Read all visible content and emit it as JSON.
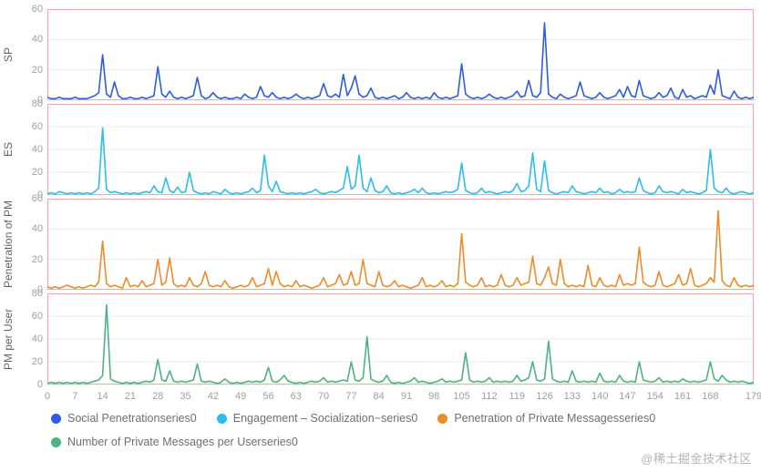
{
  "chart_data": {
    "type": "line",
    "x_max": 179,
    "x_tick_labels": [
      "0",
      "7",
      "14",
      "21",
      "28",
      "35",
      "42",
      "49",
      "56",
      "63",
      "70",
      "77",
      "84",
      "91",
      "98",
      "105",
      "112",
      "119",
      "126",
      "133",
      "140",
      "147",
      "154",
      "161",
      "168",
      "179"
    ],
    "grid_color": "#ebebeb",
    "axis_color": "#f3a6a3",
    "tick_text_color": "#98a0a6",
    "panels": [
      {
        "ylabel": "SP",
        "series_name": "Social Penetrationseries0",
        "color": "#2d5ce5",
        "ymax": 60,
        "yticks": [
          60,
          40,
          20,
          0
        ],
        "values": [
          2,
          1,
          1,
          2,
          1,
          1,
          1,
          2,
          1,
          1,
          1,
          2,
          3,
          5,
          30,
          4,
          2,
          12,
          3,
          1,
          1,
          2,
          1,
          1,
          2,
          1,
          2,
          3,
          22,
          4,
          2,
          6,
          2,
          1,
          2,
          1,
          2,
          3,
          15,
          3,
          1,
          2,
          5,
          2,
          1,
          2,
          1,
          1,
          2,
          1,
          4,
          2,
          1,
          2,
          9,
          3,
          2,
          5,
          2,
          1,
          2,
          1,
          2,
          4,
          2,
          1,
          2,
          1,
          2,
          3,
          11,
          3,
          2,
          4,
          2,
          17,
          3,
          8,
          16,
          4,
          2,
          3,
          8,
          2,
          1,
          2,
          1,
          2,
          3,
          1,
          2,
          5,
          2,
          1,
          2,
          1,
          2,
          1,
          5,
          2,
          1,
          2,
          1,
          2,
          3,
          24,
          4,
          2,
          1,
          2,
          1,
          2,
          4,
          2,
          1,
          2,
          1,
          2,
          3,
          6,
          2,
          3,
          13,
          3,
          2,
          5,
          51,
          4,
          2,
          1,
          4,
          2,
          1,
          2,
          3,
          12,
          3,
          2,
          1,
          2,
          5,
          2,
          1,
          2,
          3,
          7,
          2,
          9,
          3,
          2,
          13,
          3,
          2,
          1,
          2,
          5,
          2,
          3,
          8,
          2,
          1,
          7,
          2,
          3,
          1,
          2,
          3,
          2,
          10,
          4,
          20,
          3,
          2,
          1,
          6,
          2,
          1,
          2,
          1,
          2
        ]
      },
      {
        "ylabel": "ES",
        "series_name": "Engagement – Socialization−series0",
        "color": "#2cbdee",
        "ymax": 80,
        "yticks": [
          80,
          60,
          40,
          20,
          0
        ],
        "values": [
          1,
          2,
          1,
          3,
          2,
          1,
          2,
          1,
          2,
          1,
          2,
          1,
          3,
          6,
          59,
          5,
          2,
          3,
          2,
          1,
          2,
          1,
          2,
          1,
          2,
          3,
          2,
          8,
          3,
          2,
          15,
          4,
          2,
          7,
          2,
          3,
          20,
          4,
          2,
          1,
          2,
          1,
          3,
          2,
          1,
          5,
          2,
          1,
          2,
          1,
          2,
          3,
          6,
          2,
          4,
          35,
          8,
          3,
          12,
          3,
          2,
          1,
          2,
          1,
          2,
          1,
          2,
          3,
          5,
          2,
          1,
          2,
          3,
          2,
          4,
          6,
          25,
          5,
          8,
          35,
          6,
          3,
          15,
          4,
          2,
          3,
          8,
          2,
          1,
          2,
          1,
          2,
          3,
          5,
          2,
          6,
          2,
          1,
          2,
          1,
          2,
          3,
          2,
          3,
          5,
          28,
          4,
          2,
          1,
          2,
          6,
          2,
          3,
          2,
          1,
          2,
          3,
          2,
          4,
          10,
          3,
          4,
          8,
          37,
          5,
          3,
          30,
          4,
          2,
          1,
          2,
          3,
          2,
          8,
          3,
          2,
          1,
          2,
          3,
          2,
          6,
          2,
          3,
          1,
          2,
          5,
          2,
          3,
          2,
          3,
          15,
          4,
          2,
          1,
          2,
          8,
          3,
          2,
          3,
          2,
          1,
          5,
          2,
          3,
          2,
          1,
          2,
          4,
          40,
          6,
          3,
          2,
          6,
          2,
          1,
          2,
          3,
          2,
          1,
          2
        ]
      },
      {
        "ylabel": "Penetration of PM",
        "series_name": "Penetration of Private Messagesseries0",
        "color": "#ef8b2b",
        "ymax": 60,
        "yticks": [
          60,
          40,
          20,
          0
        ],
        "values": [
          2,
          1,
          2,
          1,
          2,
          3,
          2,
          1,
          2,
          1,
          2,
          3,
          2,
          5,
          32,
          4,
          2,
          3,
          2,
          1,
          8,
          2,
          3,
          2,
          6,
          2,
          3,
          4,
          20,
          3,
          5,
          21,
          4,
          2,
          3,
          2,
          8,
          3,
          2,
          4,
          12,
          3,
          2,
          3,
          2,
          6,
          2,
          1,
          2,
          3,
          2,
          3,
          8,
          2,
          3,
          4,
          14,
          3,
          12,
          4,
          2,
          3,
          2,
          6,
          2,
          3,
          2,
          1,
          2,
          3,
          8,
          2,
          3,
          4,
          10,
          3,
          4,
          12,
          3,
          4,
          20,
          4,
          3,
          2,
          12,
          3,
          2,
          3,
          6,
          2,
          3,
          2,
          1,
          2,
          3,
          8,
          2,
          3,
          2,
          3,
          6,
          2,
          3,
          2,
          4,
          37,
          5,
          3,
          2,
          3,
          8,
          2,
          3,
          2,
          3,
          10,
          3,
          2,
          3,
          8,
          3,
          4,
          5,
          22,
          4,
          3,
          8,
          15,
          4,
          3,
          20,
          4,
          2,
          3,
          2,
          3,
          2,
          16,
          3,
          2,
          8,
          3,
          2,
          3,
          2,
          10,
          3,
          4,
          3,
          4,
          28,
          5,
          3,
          2,
          3,
          12,
          3,
          2,
          3,
          4,
          10,
          3,
          4,
          14,
          3,
          2,
          3,
          4,
          8,
          5,
          52,
          6,
          3,
          2,
          8,
          3,
          2,
          3,
          2,
          3
        ]
      },
      {
        "ylabel": "PM per User",
        "series_name": "Number of Private Messages per Userseries0",
        "color": "#4db380",
        "ymax": 80,
        "yticks": [
          80,
          60,
          40,
          20,
          0
        ],
        "values": [
          1,
          2,
          1,
          2,
          1,
          2,
          1,
          2,
          1,
          2,
          1,
          2,
          3,
          4,
          8,
          70,
          5,
          3,
          2,
          1,
          2,
          1,
          2,
          1,
          2,
          3,
          2,
          4,
          22,
          4,
          3,
          12,
          3,
          2,
          3,
          2,
          3,
          4,
          18,
          3,
          2,
          3,
          2,
          1,
          2,
          5,
          2,
          1,
          2,
          1,
          2,
          3,
          2,
          3,
          2,
          4,
          15,
          3,
          2,
          4,
          8,
          3,
          2,
          1,
          2,
          1,
          2,
          3,
          2,
          3,
          6,
          2,
          3,
          2,
          3,
          4,
          3,
          20,
          4,
          3,
          6,
          42,
          5,
          3,
          2,
          3,
          8,
          2,
          1,
          2,
          1,
          2,
          3,
          6,
          2,
          3,
          2,
          1,
          2,
          3,
          5,
          2,
          3,
          2,
          3,
          4,
          28,
          4,
          2,
          3,
          2,
          3,
          6,
          2,
          3,
          2,
          3,
          2,
          3,
          8,
          3,
          4,
          6,
          20,
          4,
          3,
          5,
          38,
          5,
          3,
          2,
          3,
          2,
          12,
          3,
          2,
          3,
          2,
          3,
          2,
          10,
          3,
          2,
          3,
          2,
          8,
          3,
          2,
          3,
          2,
          20,
          4,
          3,
          2,
          3,
          6,
          2,
          3,
          2,
          3,
          2,
          5,
          3,
          2,
          3,
          2,
          3,
          4,
          20,
          5,
          3,
          8,
          4,
          2,
          3,
          2,
          3,
          2,
          1,
          2
        ]
      }
    ]
  },
  "legend": {
    "items": [
      {
        "label": "Social Penetrationseries0",
        "color": "#2d5ce5"
      },
      {
        "label": "Engagement – Socialization−series0",
        "color": "#2cbdee"
      },
      {
        "label": "Penetration of Private Messagesseries0",
        "color": "#ef8b2b"
      },
      {
        "label": "Number of Private Messages per Userseries0",
        "color": "#4db380"
      }
    ]
  },
  "watermark": "@稀土掘金技术社区"
}
